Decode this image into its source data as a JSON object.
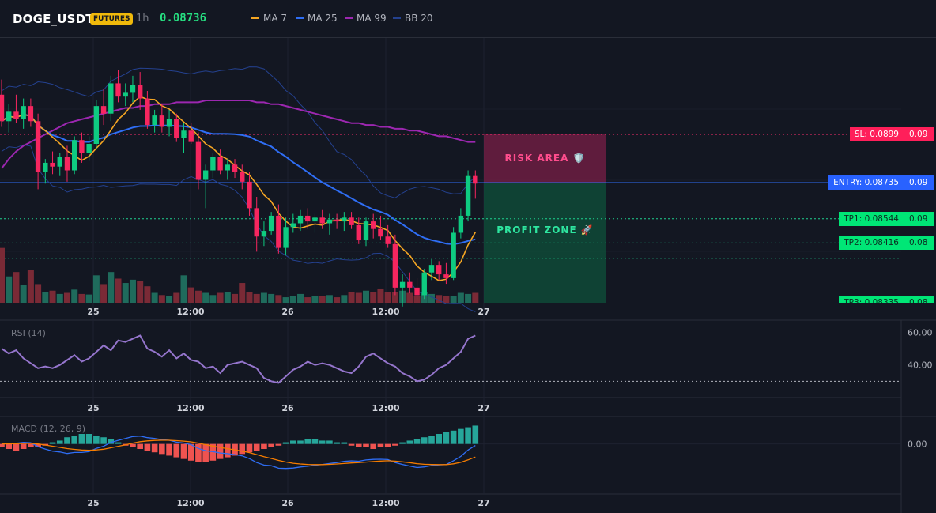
{
  "header": {
    "symbol": "DOGE_USDT",
    "badge": "FUTURES",
    "timeframe": "1h",
    "last_price": "0.08736",
    "legend": [
      {
        "label": "MA 7",
        "color": "#f5a623"
      },
      {
        "label": "MA 25",
        "color": "#2f6ef5"
      },
      {
        "label": "MA 99",
        "color": "#9c27b0"
      },
      {
        "label": "BB 20",
        "color": "#24418f"
      }
    ]
  },
  "time_axis": [
    "25",
    "12:00",
    "26",
    "12:00",
    "27"
  ],
  "trade": {
    "risk_label": "RISK AREA 🛡️",
    "profit_label": "PROFIT ZONE 🚀",
    "sl": {
      "label": "SL: 0.0899",
      "axis": "0.09",
      "value": 0.0899
    },
    "entry": {
      "label": "ENTRY: 0.08735",
      "axis": "0.09",
      "value": 0.08735
    },
    "tp1": {
      "label": "TP1: 0.08544",
      "axis": "0.09",
      "value": 0.08544
    },
    "tp2": {
      "label": "TP2: 0.08416",
      "axis": "0.08",
      "value": 0.08416
    },
    "tp3": {
      "label": "TP3: 0.08335",
      "axis": "0.08",
      "value": 0.08335
    }
  },
  "rsi": {
    "label": "RSI (14)",
    "ticks": [
      "60.00",
      "40.00"
    ]
  },
  "macd": {
    "label": "MACD (12, 26, 9)",
    "ticks": [
      "0.00"
    ]
  },
  "chart_data": {
    "type": "candlestick",
    "price_range": [
      0.081,
      0.095
    ],
    "candles": [
      [
        0.092,
        0.0928,
        0.0903,
        0.0906
      ],
      [
        0.0906,
        0.0915,
        0.09,
        0.0911
      ],
      [
        0.0911,
        0.092,
        0.0905,
        0.0907
      ],
      [
        0.0907,
        0.0918,
        0.0902,
        0.0914
      ],
      [
        0.0914,
        0.0918,
        0.0903,
        0.0906
      ],
      [
        0.0906,
        0.091,
        0.087,
        0.0879
      ],
      [
        0.0879,
        0.0886,
        0.0873,
        0.0884
      ],
      [
        0.0884,
        0.089,
        0.0878,
        0.0882
      ],
      [
        0.0882,
        0.0889,
        0.0877,
        0.0887
      ],
      [
        0.0887,
        0.0893,
        0.0874,
        0.088
      ],
      [
        0.088,
        0.0898,
        0.0878,
        0.0896
      ],
      [
        0.0896,
        0.09,
        0.0884,
        0.0889
      ],
      [
        0.0889,
        0.0898,
        0.0885,
        0.0894
      ],
      [
        0.0894,
        0.0917,
        0.0891,
        0.0914
      ],
      [
        0.0914,
        0.0923,
        0.0904,
        0.091
      ],
      [
        0.091,
        0.093,
        0.0906,
        0.0926
      ],
      [
        0.0926,
        0.0933,
        0.0916,
        0.0919
      ],
      [
        0.0919,
        0.0926,
        0.0914,
        0.0921
      ],
      [
        0.0921,
        0.093,
        0.0916,
        0.0925
      ],
      [
        0.0925,
        0.0932,
        0.0912,
        0.0918
      ],
      [
        0.0918,
        0.0922,
        0.0902,
        0.0904
      ],
      [
        0.0904,
        0.0912,
        0.09,
        0.0909
      ],
      [
        0.0909,
        0.0915,
        0.09,
        0.0903
      ],
      [
        0.0903,
        0.0912,
        0.0898,
        0.0907
      ],
      [
        0.0907,
        0.091,
        0.0895,
        0.0897
      ],
      [
        0.0897,
        0.0905,
        0.0889,
        0.0901
      ],
      [
        0.0901,
        0.0905,
        0.0894,
        0.0895
      ],
      [
        0.0895,
        0.09,
        0.087,
        0.0875
      ],
      [
        0.0875,
        0.0883,
        0.086,
        0.088
      ],
      [
        0.088,
        0.0889,
        0.0876,
        0.0887
      ],
      [
        0.0887,
        0.0891,
        0.0878,
        0.088
      ],
      [
        0.088,
        0.0886,
        0.0875,
        0.0883
      ],
      [
        0.0883,
        0.0886,
        0.0876,
        0.0879
      ],
      [
        0.0879,
        0.0883,
        0.087,
        0.0874
      ],
      [
        0.0874,
        0.0879,
        0.0856,
        0.086
      ],
      [
        0.086,
        0.0866,
        0.0837,
        0.0845
      ],
      [
        0.0845,
        0.0853,
        0.084,
        0.0848
      ],
      [
        0.0848,
        0.0858,
        0.0846,
        0.0856
      ],
      [
        0.0856,
        0.0862,
        0.0836,
        0.0839
      ],
      [
        0.0839,
        0.0855,
        0.0835,
        0.085
      ],
      [
        0.085,
        0.0857,
        0.0847,
        0.0852
      ],
      [
        0.0852,
        0.0859,
        0.0848,
        0.0856
      ],
      [
        0.0856,
        0.086,
        0.0849,
        0.0853
      ],
      [
        0.0853,
        0.0857,
        0.0847,
        0.0855
      ],
      [
        0.0855,
        0.0859,
        0.0849,
        0.0852
      ],
      [
        0.0852,
        0.0857,
        0.0846,
        0.0854
      ],
      [
        0.0854,
        0.0857,
        0.0849,
        0.0853
      ],
      [
        0.0853,
        0.0858,
        0.0848,
        0.0855
      ],
      [
        0.0855,
        0.0858,
        0.0849,
        0.0851
      ],
      [
        0.0851,
        0.0855,
        0.0841,
        0.0843
      ],
      [
        0.0843,
        0.0855,
        0.084,
        0.0853
      ],
      [
        0.0853,
        0.0857,
        0.0844,
        0.0849
      ],
      [
        0.0849,
        0.0856,
        0.0843,
        0.0845
      ],
      [
        0.0845,
        0.0851,
        0.0839,
        0.0841
      ],
      [
        0.0841,
        0.0846,
        0.0814,
        0.0818
      ],
      [
        0.0818,
        0.0825,
        0.0808,
        0.0821
      ],
      [
        0.0821,
        0.0826,
        0.0815,
        0.0818
      ],
      [
        0.0818,
        0.0823,
        0.0811,
        0.0814
      ],
      [
        0.0814,
        0.0828,
        0.0812,
        0.0826
      ],
      [
        0.0826,
        0.0833,
        0.0822,
        0.083
      ],
      [
        0.083,
        0.0832,
        0.0822,
        0.0825
      ],
      [
        0.0825,
        0.0831,
        0.082,
        0.0823
      ],
      [
        0.0823,
        0.085,
        0.0822,
        0.0847
      ],
      [
        0.0847,
        0.086,
        0.0844,
        0.0856
      ],
      [
        0.0856,
        0.088,
        0.0853,
        0.0877
      ],
      [
        0.0877,
        0.088,
        0.0865,
        0.0873
      ]
    ],
    "volume": [
      1.0,
      0.48,
      0.56,
      0.32,
      0.6,
      0.34,
      0.2,
      0.22,
      0.16,
      0.18,
      0.24,
      0.16,
      0.15,
      0.5,
      0.34,
      0.56,
      0.44,
      0.36,
      0.42,
      0.4,
      0.3,
      0.18,
      0.14,
      0.12,
      0.18,
      0.5,
      0.28,
      0.22,
      0.18,
      0.14,
      0.18,
      0.2,
      0.16,
      0.36,
      0.2,
      0.16,
      0.18,
      0.16,
      0.14,
      0.1,
      0.12,
      0.16,
      0.1,
      0.12,
      0.12,
      0.14,
      0.1,
      0.14,
      0.2,
      0.18,
      0.22,
      0.2,
      0.26,
      0.2,
      0.2,
      0.22,
      0.18,
      0.12,
      0.2,
      0.16,
      0.14,
      0.12,
      0.12,
      0.18,
      0.16,
      0.18
    ],
    "ma99": [
      0.0881,
      0.0886,
      0.089,
      0.0893,
      0.0895,
      0.0897,
      0.0899,
      0.0901,
      0.0903,
      0.0905,
      0.0906,
      0.0907,
      0.0908,
      0.0909,
      0.091,
      0.0911,
      0.0912,
      0.0913,
      0.0913,
      0.0914,
      0.0914,
      0.0915,
      0.0915,
      0.0915,
      0.0916,
      0.0916,
      0.0916,
      0.0916,
      0.0917,
      0.0917,
      0.0917,
      0.0917,
      0.0917,
      0.0917,
      0.0917,
      0.0916,
      0.0916,
      0.0915,
      0.0915,
      0.0914,
      0.0913,
      0.0912,
      0.0911,
      0.091,
      0.0909,
      0.0908,
      0.0907,
      0.0906,
      0.0905,
      0.0905,
      0.0904,
      0.0904,
      0.0903,
      0.0903,
      0.0902,
      0.0902,
      0.0901,
      0.0901,
      0.09,
      0.0899,
      0.0898,
      0.0898,
      0.0897,
      0.0896,
      0.0895,
      0.0895
    ],
    "rsi": [
      50,
      47,
      49,
      44,
      41,
      38,
      39,
      38,
      40,
      43,
      46,
      42,
      44,
      48,
      52,
      49,
      55,
      54,
      56,
      58,
      50,
      48,
      45,
      49,
      44,
      47,
      43,
      42,
      38,
      39,
      35,
      40,
      41,
      42,
      40,
      38,
      32,
      30,
      29,
      33,
      37,
      39,
      42,
      40,
      41,
      40,
      38,
      36,
      35,
      39,
      45,
      47,
      44,
      41,
      39,
      35,
      33,
      30,
      31,
      34,
      38,
      40,
      44,
      48,
      56,
      58
    ],
    "macd_hist": [
      -0.0002,
      -0.0003,
      -0.0004,
      -0.0003,
      -0.0002,
      -0.0002,
      -0.0001,
      0.0001,
      0.0002,
      0.0004,
      0.0005,
      0.0006,
      0.0006,
      0.0005,
      0.0004,
      0.0003,
      0.0001,
      -0.0001,
      -0.0002,
      -0.0003,
      -0.0004,
      -0.0005,
      -0.0006,
      -0.0007,
      -0.0008,
      -0.0009,
      -0.001,
      -0.0011,
      -0.0011,
      -0.001,
      -0.0009,
      -0.0008,
      -0.0007,
      -0.0006,
      -0.0005,
      -0.0004,
      -0.0003,
      -0.0002,
      -0.0001,
      0.0001,
      0.0002,
      0.0002,
      0.0003,
      0.0003,
      0.0002,
      0.0002,
      0.0001,
      0.0001,
      -0.0001,
      -0.0002,
      -0.0002,
      -0.0003,
      -0.0002,
      -0.0002,
      -0.0001,
      0.0001,
      0.0002,
      0.0003,
      0.0004,
      0.0005,
      0.0006,
      0.0007,
      0.0008,
      0.0009,
      0.001,
      0.0011
    ],
    "macd_ylim": [
      -0.003,
      0.0015
    ]
  }
}
